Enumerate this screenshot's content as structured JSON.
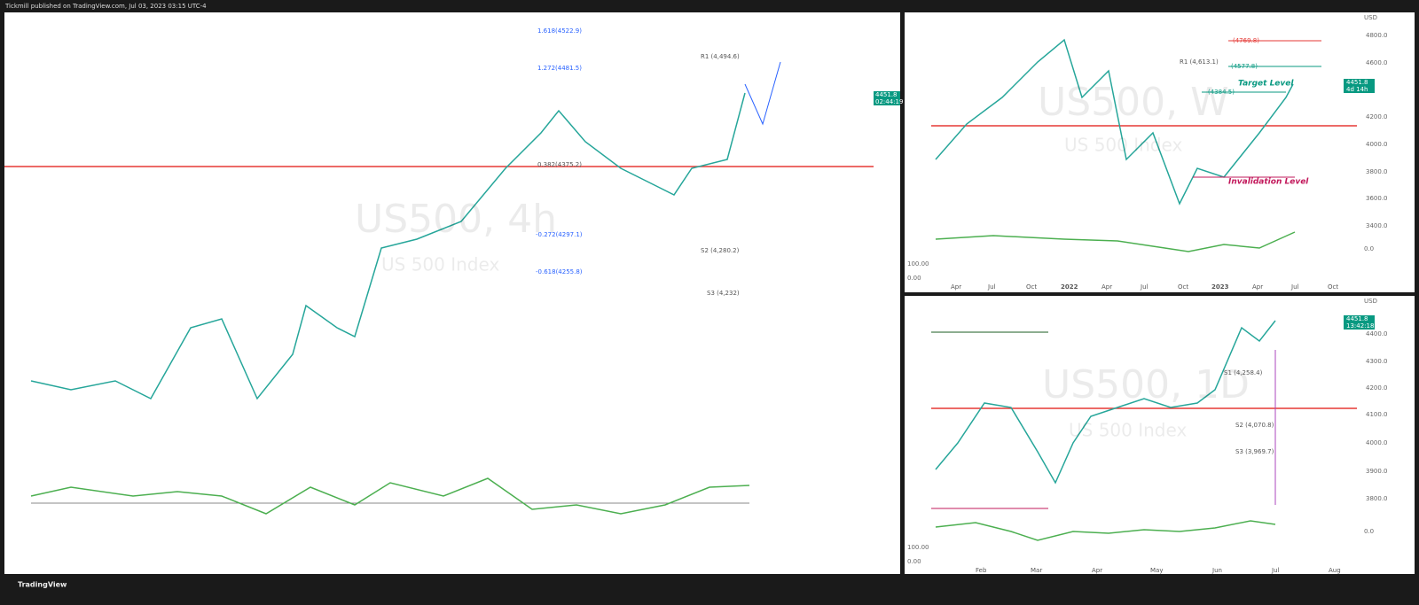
{
  "header": {
    "publisher": "Tickmill published on TradingView.com, Jul 03, 2023 03:15 UTC-4"
  },
  "footer": {
    "brand": "TradingView"
  },
  "panels": [
    {
      "watermark": "US500, 4h",
      "subtitle": "US 500 Index",
      "price": "4451.8",
      "countdown": "02:44:19",
      "levels": [
        "1.618(4522.9)",
        "1.272(4481.5)",
        "R1 (4,494.6)",
        "0.382(4375.2)",
        "-0.272(4297.1)",
        "S2 (4,280.2)",
        "-0.618(4255.8)",
        "S3 (4,232)"
      ]
    },
    {
      "watermark": "US500, W",
      "subtitle": "US 500 Index",
      "price": "4451.8",
      "countdown": "4d 14h",
      "currency": "USD",
      "yaxis": [
        "4800.0",
        "4600.0",
        "4200.0",
        "4000.0",
        "3800.0",
        "3600.0",
        "3400.0"
      ],
      "levels": [
        "(4769.8)",
        "R1 (4,613.1)",
        "(4577.8)",
        "(4384.5)"
      ],
      "annotations": [
        "Target Level",
        "Invalidation Level"
      ],
      "oscillator": [
        "0.0",
        "100.00",
        "0.00"
      ],
      "xaxis": [
        "Apr",
        "Jul",
        "Oct",
        "2022",
        "Apr",
        "Jul",
        "Oct",
        "2023",
        "Apr",
        "Jul",
        "Oct"
      ]
    },
    {
      "watermark": "US500, 1D",
      "subtitle": "US 500 Index",
      "price": "4451.8",
      "countdown": "13:42:18",
      "currency": "USD",
      "yaxis": [
        "4400.0",
        "4300.0",
        "4200.0",
        "4100.0",
        "4000.0",
        "3900.0",
        "3800.0"
      ],
      "levels": [
        "S1 (4,258.4)",
        "S2 (4,070.8)",
        "S3 (3,969.7)"
      ],
      "oscillator": [
        "0.0",
        "100.00",
        "0.00"
      ],
      "xaxis": [
        "Feb",
        "Mar",
        "Apr",
        "May",
        "Jun",
        "Jul",
        "Aug"
      ]
    }
  ]
}
